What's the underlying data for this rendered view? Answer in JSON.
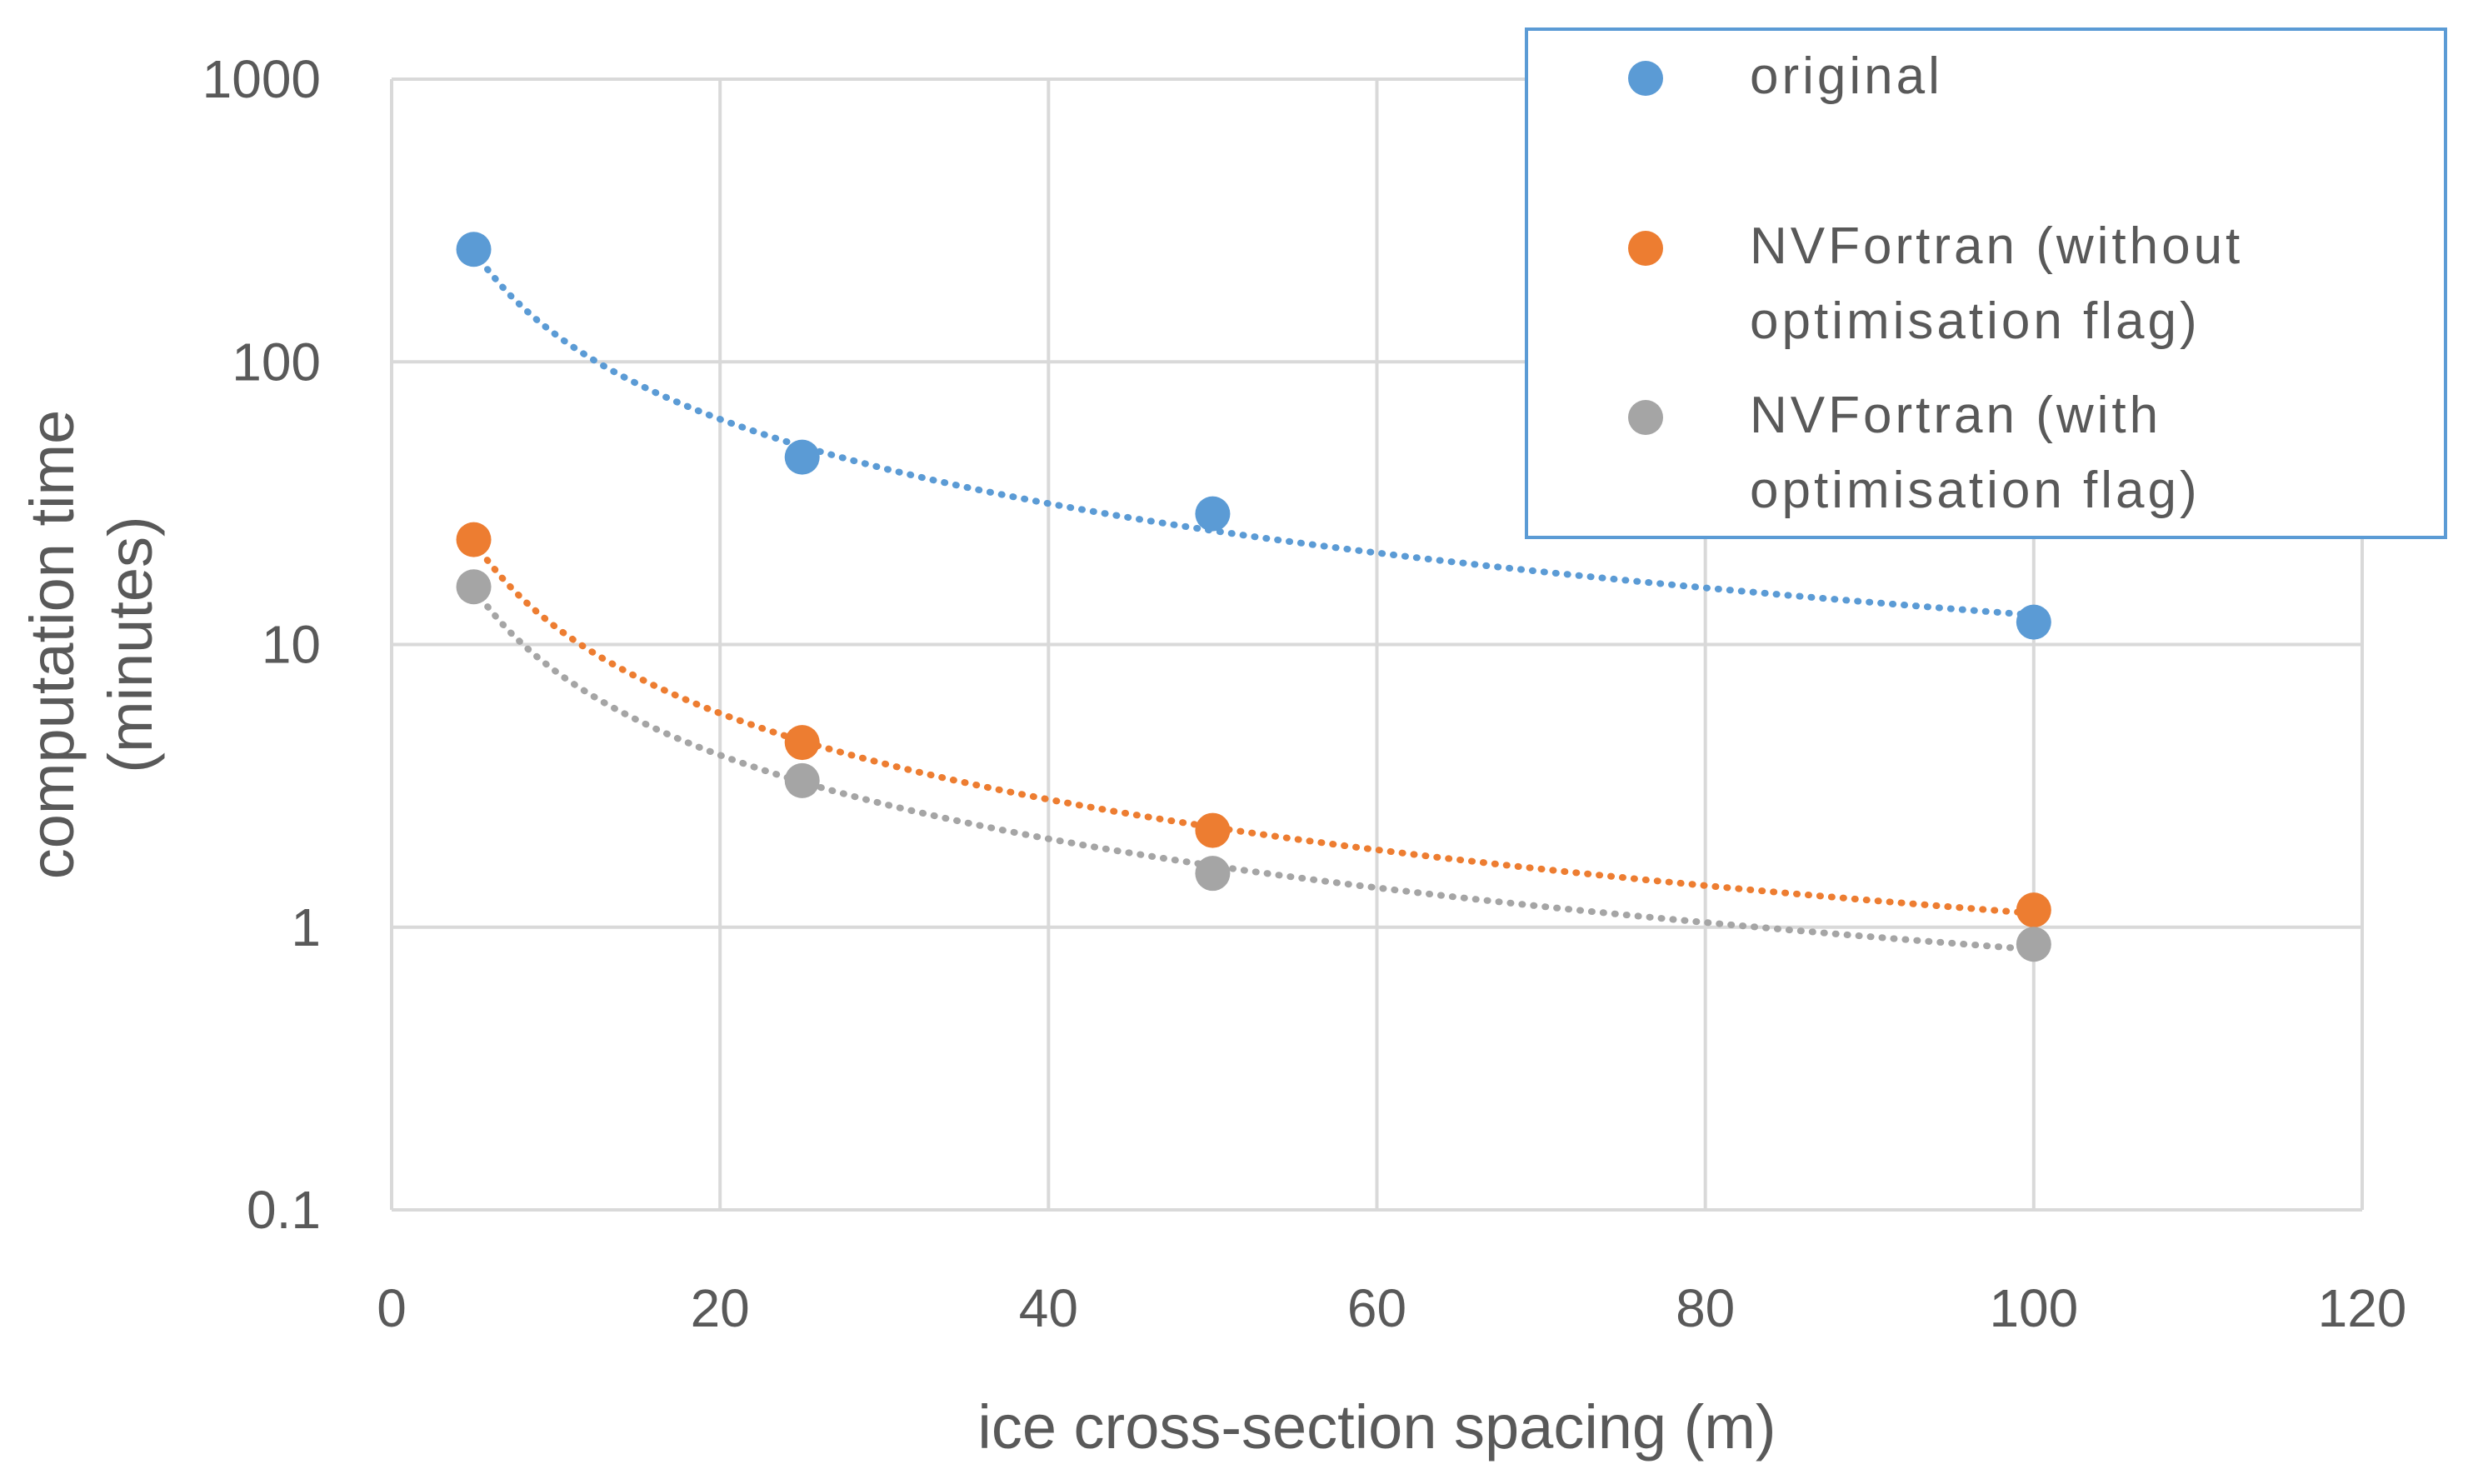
{
  "chart_data": {
    "type": "scatter",
    "xlabel": "ice cross-section spacing (m)",
    "ylabel_lines": [
      "computation time",
      "(minutes)"
    ],
    "xlim": [
      0,
      120
    ],
    "ylim": [
      0.1,
      1000
    ],
    "yscale": "log",
    "x_ticks": [
      "0",
      "20",
      "40",
      "60",
      "80",
      "100",
      "120"
    ],
    "y_ticks": [
      "0.1",
      "1",
      "10",
      "100",
      "1000"
    ],
    "grid": true,
    "legend_position": "top-right",
    "trendline": "power, dotted",
    "series": [
      {
        "name": "original",
        "legend_lines": [
          "original"
        ],
        "color": "#5b9bd5",
        "x": [
          5,
          25,
          50,
          100
        ],
        "y": [
          250,
          46,
          29,
          12
        ]
      },
      {
        "name": "NVFortran (without optimisation flag)",
        "legend_lines": [
          "NVFortran (without",
          "optimisation flag)"
        ],
        "color": "#ed7d31",
        "x": [
          5,
          25,
          50,
          100
        ],
        "y": [
          23.5,
          4.5,
          2.2,
          1.15
        ]
      },
      {
        "name": "NVFortran (with optimisation flag)",
        "legend_lines": [
          "NVFortran (with",
          "optimisation flag)"
        ],
        "color": "#a5a5a5",
        "x": [
          5,
          25,
          50,
          100
        ],
        "y": [
          16,
          3.3,
          1.55,
          0.87
        ]
      }
    ]
  }
}
